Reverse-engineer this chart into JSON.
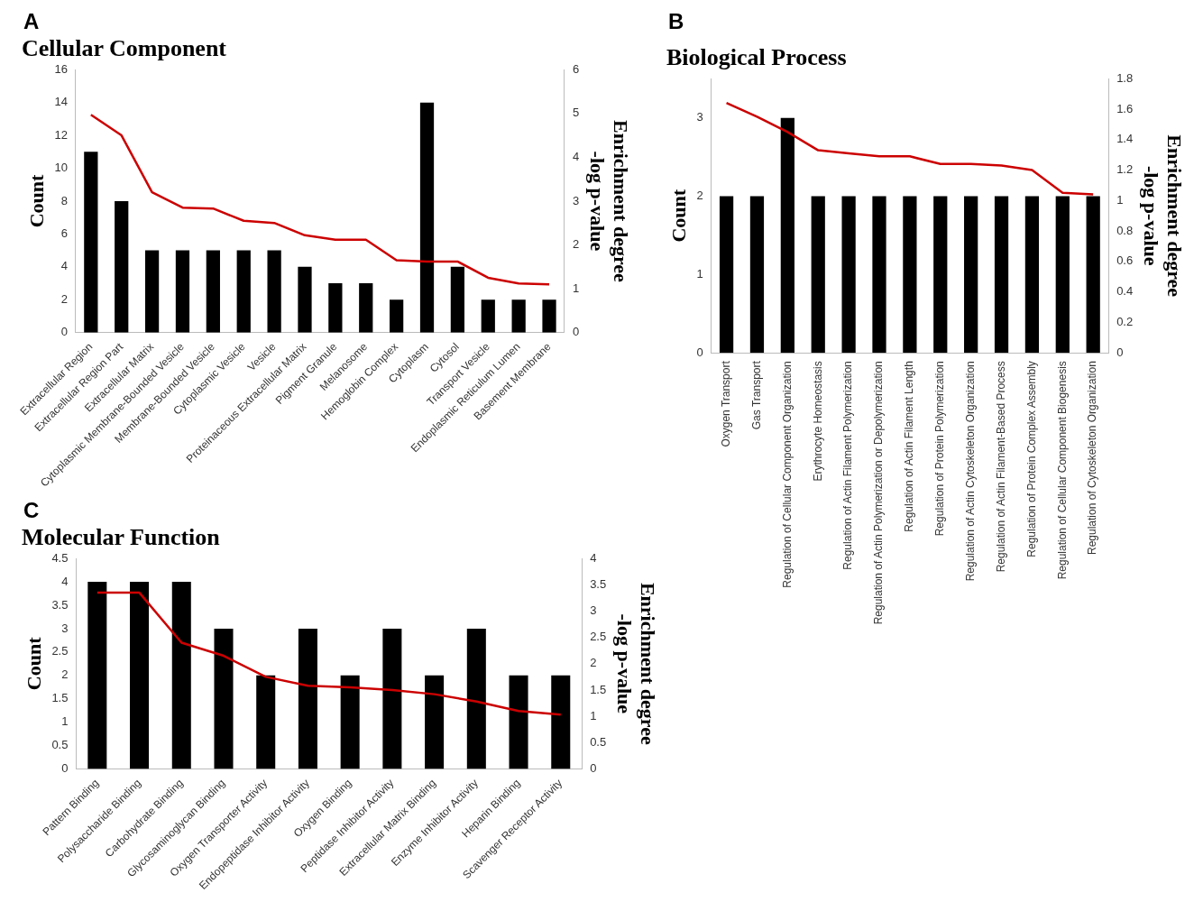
{
  "chart_data": [
    {
      "type": "bar",
      "title": "Cellular Component",
      "ylabel": "Count",
      "y2label": "Enrichment degree\n-log p-value",
      "annotations": [
        "A"
      ],
      "categories": [
        "Extracellular Region",
        "Extracellular Region Part",
        "Extracellular Matrix",
        "Cytoplasmic Membrane-Bounded Vesicle",
        "Membrane-Bounded Vesicle",
        "Cytoplasmic Vesicle",
        "Vesicle",
        "Proteinaceous Extracellular Matrix",
        "Pigment Granule",
        "Melanosome",
        "Hemoglobin Complex",
        "Cytoplasm",
        "Cytosol",
        "Transport Vesicle",
        "Endoplasmic Reticulum Lumen",
        "Basement Membrane"
      ],
      "series": [
        {
          "color": "#000000",
          "values": [
            11,
            8,
            5,
            5,
            5,
            5,
            5,
            4,
            3,
            3,
            2,
            14,
            4,
            2,
            2,
            2
          ]
        },
        {
          "type": "line",
          "axis": "y2",
          "color": "#cc0000",
          "values": [
            4.97,
            4.5,
            3.2,
            2.85,
            2.83,
            2.55,
            2.5,
            2.22,
            2.12,
            2.12,
            1.65,
            1.62,
            1.62,
            1.25,
            1.12,
            1.1
          ]
        }
      ],
      "ylim": [
        0,
        16
      ],
      "yticks": [
        0,
        2,
        4,
        6,
        8,
        10,
        12,
        14,
        16
      ],
      "y2lim": [
        0,
        6
      ],
      "y2ticks": [
        0,
        1,
        2,
        3,
        4,
        5,
        6
      ],
      "grid": false,
      "legend": false,
      "marker": "none",
      "line_style": "solid"
    },
    {
      "type": "bar",
      "title": "Biological Process",
      "ylabel": "Count",
      "y2label": "Enrichment degree\n-log p-value",
      "annotations": [
        "B"
      ],
      "categories": [
        "Oxygen Transport",
        "Gas Transport",
        "Regulation of Cellular Component Organization",
        "Erythrocyte Homeostasis",
        "Regulation of Actin Filament Polymerization",
        "Regulation of Actin Polymerization or Depolymerization",
        "Regulation of Actin Filament Length",
        "Regulation of Protein Polymerization",
        "Regulation of Actin Cytoskeleton Organization",
        "Regulation of Actin Filament-Based Process",
        "Regulation of Protein Complex Assembly",
        "Regulation of Cellular Component Biogenesis",
        "Regulation of Cytoskeleton Organization"
      ],
      "series": [
        {
          "color": "#000000",
          "values": [
            2,
            2,
            3,
            2,
            2,
            2,
            2,
            2,
            2,
            2,
            2,
            2,
            2
          ]
        },
        {
          "type": "line",
          "axis": "y2",
          "color": "#cc0000",
          "values": [
            1.64,
            1.55,
            1.45,
            1.33,
            1.31,
            1.29,
            1.29,
            1.24,
            1.24,
            1.23,
            1.2,
            1.05,
            1.04
          ]
        }
      ],
      "ylim": [
        0,
        3.5
      ],
      "yticks": [
        0,
        1,
        2,
        3
      ],
      "y2lim": [
        0,
        1.8
      ],
      "y2ticks": [
        0,
        0.2,
        0.4,
        0.6,
        0.8,
        1,
        1.2,
        1.4,
        1.6,
        1.8
      ],
      "grid": false,
      "legend": false,
      "marker": "none",
      "line_style": "solid"
    },
    {
      "type": "bar",
      "title": "Molecular Function",
      "ylabel": "Count",
      "y2label": "Enrichment degree\n-log p-value",
      "annotations": [
        "C"
      ],
      "categories": [
        "Pattern Binding",
        "Polysaccharide Binding",
        "Carbohydrate Binding",
        "Glycosaminoglycan Binding",
        "Oxygen Transporter Activity",
        "Endopeptidase Inhibitor Activity",
        "Oxygen Binding",
        "Peptidase Inhibitor Activity",
        "Extracellular Matrix Binding",
        "Enzyme Inhibitor Activity",
        "Heparin Binding",
        "Scavenger Receptor Activity"
      ],
      "series": [
        {
          "color": "#000000",
          "values": [
            4,
            4,
            4,
            3,
            2,
            3,
            2,
            3,
            2,
            3,
            2,
            2
          ]
        },
        {
          "type": "line",
          "axis": "y2",
          "color": "#cc0000",
          "values": [
            3.35,
            3.35,
            2.4,
            2.15,
            1.75,
            1.58,
            1.55,
            1.5,
            1.42,
            1.28,
            1.1,
            1.03
          ]
        }
      ],
      "ylim": [
        0,
        4.5
      ],
      "yticks": [
        0,
        0.5,
        1,
        1.5,
        2,
        2.5,
        3,
        3.5,
        4,
        4.5
      ],
      "y2lim": [
        0,
        4
      ],
      "y2ticks": [
        0,
        0.5,
        1,
        1.5,
        2,
        2.5,
        3,
        3.5,
        4
      ],
      "grid": false,
      "legend": false,
      "marker": "none",
      "line_style": "solid"
    }
  ]
}
